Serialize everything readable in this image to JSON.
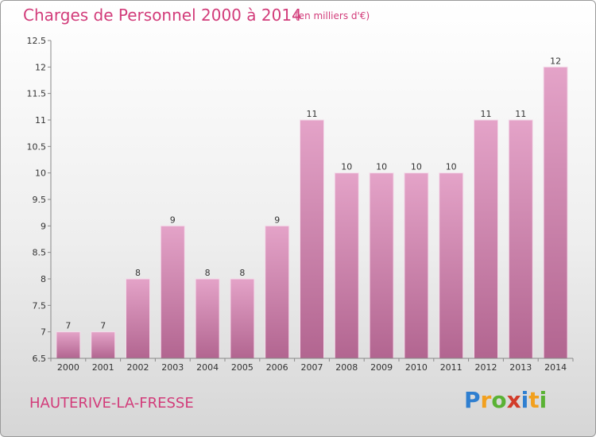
{
  "chart_data": {
    "type": "bar",
    "title": "Charges de Personnel 2000 à 2014",
    "subtitle": "(en milliers d'€)",
    "categories": [
      "2000",
      "2001",
      "2002",
      "2003",
      "2004",
      "2005",
      "2006",
      "2007",
      "2008",
      "2009",
      "2010",
      "2011",
      "2012",
      "2013",
      "2014"
    ],
    "values": [
      7,
      7,
      8,
      9,
      8,
      8,
      9,
      11,
      10,
      10,
      10,
      10,
      11,
      11,
      12
    ],
    "data_labels": [
      "7",
      "7",
      "8",
      "9",
      "8",
      "8",
      "9",
      "11",
      "10",
      "10",
      "10",
      "10",
      "11",
      "11",
      "12"
    ],
    "ylim": [
      6.5,
      12.5
    ],
    "yticks": [
      6.5,
      7,
      7.5,
      8,
      8.5,
      9,
      9.5,
      10,
      10.5,
      11,
      11.5,
      12,
      12.5
    ],
    "ytick_labels": [
      "6.5",
      "7",
      "7.5",
      "8",
      "8.5",
      "9",
      "9.5",
      "10",
      "10.5",
      "11",
      "11.5",
      "12",
      "12.5"
    ],
    "xlabel": "",
    "ylabel": "",
    "grid": false,
    "bar_color": "#c8709c"
  },
  "commune": "HAUTERIVE-LA-FRESSE",
  "logo": {
    "letters": [
      "P",
      "r",
      "o",
      "x",
      "i",
      "t",
      "i"
    ],
    "colors": [
      "#2f7fd0",
      "#f2a01e",
      "#5ab234",
      "#d23c2a",
      "#2f7fd0",
      "#f2a01e",
      "#5ab234"
    ]
  },
  "colors": {
    "accent": "#d23c7a"
  }
}
